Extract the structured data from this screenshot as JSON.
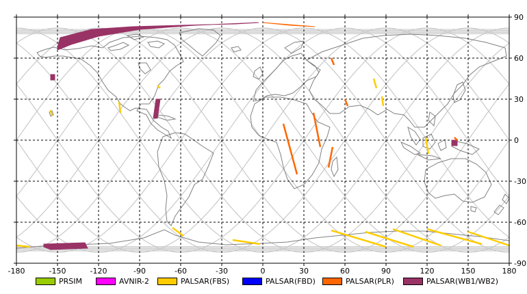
{
  "chart_data": {
    "type": "map",
    "projection": "equirectangular",
    "xlim": [
      -180,
      180
    ],
    "ylim": [
      -90,
      90
    ],
    "x_ticks": [
      -180,
      -150,
      -120,
      -90,
      -60,
      -30,
      0,
      30,
      60,
      90,
      120,
      150,
      180
    ],
    "y_ticks": [
      90,
      60,
      30,
      0,
      -30,
      -60,
      -90
    ],
    "grid": "dashed",
    "legend_position": "bottom",
    "legend": [
      {
        "label": "PRSIM",
        "color": "#99cc00"
      },
      {
        "label": "AVNIR-2",
        "color": "#ff00ff"
      },
      {
        "label": "PALSAR(FBS)",
        "color": "#ffcc00"
      },
      {
        "label": "PALSAR(FBD)",
        "color": "#0000ff"
      },
      {
        "label": "PALSAR(PLR)",
        "color": "#ff6600"
      },
      {
        "label": "PALSAR(WB1/WB2)",
        "color": "#993366"
      }
    ],
    "swaths": [
      {
        "sensor": "PALSAR(WB1/WB2)",
        "lonlat": [
          [
            -150,
            68
          ],
          [
            -148,
            75
          ],
          [
            -125,
            81
          ],
          [
            -95,
            83
          ],
          [
            -60,
            84
          ],
          [
            -20,
            85
          ],
          [
            -3,
            86
          ],
          [
            -50,
            84
          ],
          [
            -90,
            81
          ],
          [
            -120,
            76
          ],
          [
            -140,
            70
          ],
          [
            -150,
            66
          ]
        ]
      },
      {
        "sensor": "PALSAR(WB1/WB2)",
        "lonlat": [
          [
            -155,
            48
          ],
          [
            -152,
            48
          ],
          [
            -152,
            44
          ],
          [
            -155,
            44
          ]
        ]
      },
      {
        "sensor": "PALSAR(WB1/WB2)",
        "lonlat": [
          [
            -78,
            30
          ],
          [
            -75,
            30
          ],
          [
            -77,
            16
          ],
          [
            -80,
            16
          ]
        ]
      },
      {
        "sensor": "PALSAR(WB1/WB2)",
        "lonlat": [
          [
            138,
            0
          ],
          [
            142,
            0
          ],
          [
            142,
            -4
          ],
          [
            138,
            -4
          ]
        ]
      },
      {
        "sensor": "PALSAR(WB1/WB2)",
        "lonlat": [
          [
            -160,
            -76
          ],
          [
            -130,
            -75
          ],
          [
            -128,
            -79
          ],
          [
            -155,
            -80
          ],
          [
            -160,
            -78
          ]
        ]
      },
      {
        "sensor": "PALSAR(PLR)",
        "lonlat": [
          [
            0,
            86
          ],
          [
            20,
            84
          ],
          [
            38,
            83
          ]
        ]
      },
      {
        "sensor": "PALSAR(PLR)",
        "lonlat": [
          [
            15,
            12
          ],
          [
            25,
            -25
          ]
        ]
      },
      {
        "sensor": "PALSAR(PLR)",
        "lonlat": [
          [
            37,
            20
          ],
          [
            42,
            -5
          ]
        ]
      },
      {
        "sensor": "PALSAR(PLR)",
        "lonlat": [
          [
            51,
            -5
          ],
          [
            48,
            -20
          ]
        ]
      },
      {
        "sensor": "PALSAR(PLR)",
        "lonlat": [
          [
            50,
            60
          ],
          [
            52,
            55
          ]
        ]
      },
      {
        "sensor": "PALSAR(PLR)",
        "lonlat": [
          [
            60,
            30
          ],
          [
            62,
            25
          ]
        ]
      },
      {
        "sensor": "PALSAR(PLR)",
        "lonlat": [
          [
            140,
            2
          ],
          [
            142,
            0
          ]
        ]
      },
      {
        "sensor": "PALSAR(FBS)",
        "lonlat": [
          [
            -105,
            28
          ],
          [
            -104,
            20
          ]
        ]
      },
      {
        "sensor": "PALSAR(FBS)",
        "lonlat": [
          [
            -77,
            40
          ],
          [
            -75,
            38
          ]
        ]
      },
      {
        "sensor": "PALSAR(FBS)",
        "lonlat": [
          [
            -155,
            22
          ],
          [
            -154,
            18
          ]
        ]
      },
      {
        "sensor": "PALSAR(FBS)",
        "lonlat": [
          [
            81,
            45
          ],
          [
            83,
            38
          ]
        ]
      },
      {
        "sensor": "PALSAR(FBS)",
        "lonlat": [
          [
            87,
            32
          ],
          [
            88,
            25
          ]
        ]
      },
      {
        "sensor": "PALSAR(FBS)",
        "lonlat": [
          [
            119,
            2
          ],
          [
            121,
            -10
          ]
        ]
      },
      {
        "sensor": "PALSAR(FBS)",
        "lonlat": [
          [
            -66,
            -64
          ],
          [
            -58,
            -70
          ]
        ]
      },
      {
        "sensor": "PALSAR(FBS)",
        "lonlat": [
          [
            -22,
            -73
          ],
          [
            -2,
            -76
          ]
        ]
      },
      {
        "sensor": "PALSAR(FBS)",
        "lonlat": [
          [
            50,
            -66
          ],
          [
            90,
            -78
          ]
        ]
      },
      {
        "sensor": "PALSAR(FBS)",
        "lonlat": [
          [
            75,
            -67
          ],
          [
            110,
            -78
          ]
        ]
      },
      {
        "sensor": "PALSAR(FBS)",
        "lonlat": [
          [
            95,
            -65
          ],
          [
            130,
            -77
          ]
        ]
      },
      {
        "sensor": "PALSAR(FBS)",
        "lonlat": [
          [
            120,
            -65
          ],
          [
            160,
            -76
          ]
        ]
      },
      {
        "sensor": "PALSAR(FBS)",
        "lonlat": [
          [
            150,
            -67
          ],
          [
            180,
            -77
          ]
        ]
      },
      {
        "sensor": "PALSAR(FBS)",
        "lonlat": [
          [
            -180,
            -77
          ],
          [
            -170,
            -78
          ]
        ]
      }
    ]
  }
}
